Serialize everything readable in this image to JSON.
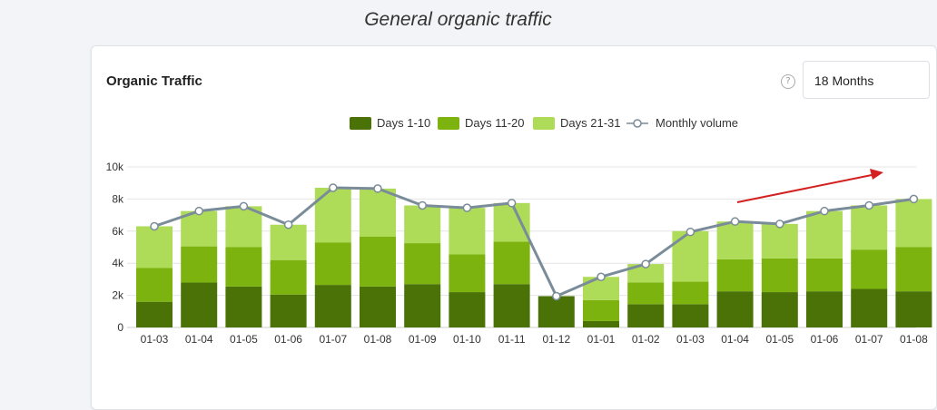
{
  "page": {
    "heading": "General organic traffic"
  },
  "card": {
    "title": "Organic Traffic",
    "help_icon": "question-mark-icon",
    "period": "18 Months"
  },
  "chart_data": {
    "type": "bar",
    "stacked": true,
    "categories": [
      "01-03",
      "01-04",
      "01-05",
      "01-06",
      "01-07",
      "01-08",
      "01-09",
      "01-10",
      "01-11",
      "01-12",
      "01-01",
      "01-02",
      "01-03",
      "01-04",
      "01-05",
      "01-06",
      "01-07",
      "01-08"
    ],
    "series": [
      {
        "name": "Days 1-10",
        "color": "#4a7206",
        "values": [
          1600,
          2800,
          2550,
          2050,
          2650,
          2550,
          2700,
          2200,
          2700,
          1950,
          400,
          1450,
          1450,
          2250,
          2200,
          2250,
          2400,
          2250
        ]
      },
      {
        "name": "Days 11-20",
        "color": "#7cb30e",
        "values": [
          2100,
          2250,
          2450,
          2150,
          2650,
          3100,
          2550,
          2350,
          2650,
          0,
          1300,
          1350,
          1400,
          2000,
          2100,
          2050,
          2450,
          2750
        ]
      },
      {
        "name": "Days 21-31",
        "color": "#aedb58",
        "values": [
          2600,
          2200,
          2550,
          2200,
          3400,
          3000,
          2350,
          2900,
          2400,
          0,
          1450,
          1150,
          3150,
          2350,
          2150,
          2950,
          2750,
          3000
        ]
      }
    ],
    "line": {
      "name": "Monthly volume",
      "color": "#7a8c99",
      "values": [
        6300,
        7250,
        7550,
        6400,
        8700,
        8650,
        7600,
        7450,
        7750,
        1950,
        3150,
        3950,
        5950,
        6600,
        6450,
        7250,
        7600,
        8000
      ]
    },
    "yticks": [
      0,
      2000,
      4000,
      6000,
      8000,
      10000
    ],
    "yticklabels": [
      "0",
      "2k",
      "4k",
      "6k",
      "8k",
      "10k"
    ],
    "ylim": [
      0,
      10000
    ],
    "legend": "top-center",
    "grid": true,
    "annotation": {
      "type": "arrow",
      "color": "#d42020",
      "description": "upward trend arrow"
    }
  }
}
